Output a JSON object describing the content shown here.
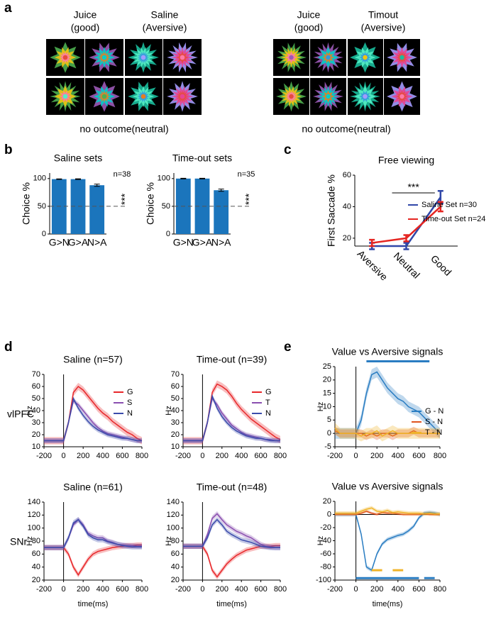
{
  "panel_labels": [
    "a",
    "b",
    "c",
    "d",
    "e"
  ],
  "panel_a": {
    "left": {
      "titles": [
        [
          "Juice",
          "(good)"
        ],
        [
          "Saline",
          "(Aversive)"
        ]
      ],
      "caption": "no outcome(neutral)"
    },
    "right": {
      "titles": [
        [
          "Juice",
          "(good)"
        ],
        [
          "Timout",
          "(Aversive)"
        ]
      ],
      "caption": "no outcome(neutral)"
    }
  },
  "row_labels": [
    "vlPFC",
    "SNr"
  ],
  "chart_data": [
    {
      "type": "bar",
      "title": "Saline sets",
      "categories": [
        "G>N",
        "G>A",
        "N>A"
      ],
      "values": [
        99,
        99,
        88
      ],
      "errors": [
        0.5,
        0.6,
        2
      ],
      "color": "#1b75bc",
      "ylabel": "Choice %",
      "ylim": [
        0,
        110
      ],
      "yticks": [
        0,
        50,
        100
      ],
      "reference_line": 50,
      "n_label": "n=38",
      "significance": "***"
    },
    {
      "type": "bar",
      "title": "Time-out sets",
      "categories": [
        "G>N",
        "G>A",
        "N>A"
      ],
      "values": [
        100,
        100,
        79
      ],
      "errors": [
        0.5,
        0.5,
        2
      ],
      "color": "#1b75bc",
      "ylabel": "Choice %",
      "ylim": [
        0,
        110
      ],
      "yticks": [
        0,
        50,
        100
      ],
      "reference_line": 50,
      "n_label": "n=35",
      "significance": "***"
    },
    {
      "type": "line",
      "title": "Free viewing",
      "categories": [
        "Aversive",
        "Neutral",
        "Good"
      ],
      "ylabel": "First Saccade %",
      "ylim": [
        15,
        60
      ],
      "yticks": [
        20,
        40,
        60
      ],
      "series": [
        {
          "name": "Saline Set n=30",
          "color": "#3047a8",
          "values": [
            15,
            15,
            46
          ],
          "errors": [
            2,
            2,
            4
          ]
        },
        {
          "name": "Time-out Set n=24",
          "color": "#e52521",
          "values": [
            17,
            20,
            40
          ],
          "errors": [
            2,
            2,
            3
          ]
        }
      ],
      "legend": "center right",
      "significance": "***"
    },
    {
      "type": "line",
      "title": "Saline (n=57)",
      "ylabel": "Hz",
      "x": [
        -200,
        -150,
        -100,
        -50,
        0,
        50,
        100,
        150,
        200,
        250,
        300,
        350,
        400,
        450,
        500,
        550,
        600,
        650,
        700,
        750,
        800
      ],
      "xlim": [
        -200,
        800
      ],
      "xticks": [
        -200,
        0,
        200,
        400,
        600,
        800
      ],
      "ylim": [
        10,
        70
      ],
      "yticks": [
        10,
        20,
        30,
        40,
        50,
        60,
        70
      ],
      "vline": 0,
      "legend": "upper right",
      "series": [
        {
          "name": "G",
          "color": "#e8272a",
          "error": 3,
          "values": [
            15,
            15,
            15,
            15,
            15,
            30,
            55,
            60,
            57,
            52,
            47,
            42,
            38,
            35,
            31,
            28,
            25,
            22,
            20,
            17,
            15
          ]
        },
        {
          "name": "S",
          "color": "#8a4fb0",
          "error": 2,
          "values": [
            15,
            15,
            15,
            15,
            15,
            30,
            48,
            45,
            40,
            35,
            30,
            26,
            23,
            21,
            20,
            19,
            18,
            17,
            16,
            15,
            15
          ]
        },
        {
          "name": "N",
          "color": "#3b4bab",
          "error": 2,
          "values": [
            15,
            15,
            15,
            15,
            15,
            30,
            50,
            42,
            36,
            31,
            27,
            24,
            22,
            20,
            19,
            18,
            17,
            17,
            16,
            15,
            15
          ]
        }
      ]
    },
    {
      "type": "line",
      "title": "Time-out (n=39)",
      "ylabel": "Hz",
      "x": [
        -200,
        -150,
        -100,
        -50,
        0,
        50,
        100,
        150,
        200,
        250,
        300,
        350,
        400,
        450,
        500,
        550,
        600,
        650,
        700,
        750,
        800
      ],
      "xlim": [
        -200,
        800
      ],
      "xticks": [
        -200,
        0,
        200,
        400,
        600,
        800
      ],
      "ylim": [
        10,
        70
      ],
      "yticks": [
        10,
        20,
        30,
        40,
        50,
        60,
        70
      ],
      "vline": 0,
      "legend": "upper right",
      "series": [
        {
          "name": "G",
          "color": "#e8272a",
          "error": 3,
          "values": [
            15,
            15,
            15,
            15,
            15,
            30,
            55,
            62,
            60,
            57,
            52,
            46,
            41,
            37,
            33,
            30,
            27,
            24,
            21,
            18,
            16
          ]
        },
        {
          "name": "T",
          "color": "#8a4fb0",
          "error": 2,
          "values": [
            15,
            15,
            15,
            15,
            15,
            30,
            50,
            45,
            38,
            33,
            28,
            25,
            22,
            20,
            19,
            18,
            17,
            16,
            16,
            15,
            15
          ]
        },
        {
          "name": "N",
          "color": "#3b4bab",
          "error": 2,
          "values": [
            15,
            15,
            15,
            15,
            15,
            30,
            52,
            42,
            35,
            30,
            26,
            23,
            21,
            19,
            18,
            17,
            17,
            16,
            15,
            15,
            15
          ]
        }
      ]
    },
    {
      "type": "line",
      "title": "Saline (n=61)",
      "ylabel": "Hz",
      "xlabel": "time(ms)",
      "x": [
        -200,
        -150,
        -100,
        -50,
        0,
        50,
        100,
        150,
        200,
        250,
        300,
        350,
        400,
        450,
        500,
        550,
        600,
        650,
        700,
        750,
        800
      ],
      "xlim": [
        -200,
        800
      ],
      "xticks": [
        -200,
        0,
        200,
        400,
        600,
        800
      ],
      "ylim": [
        20,
        140
      ],
      "yticks": [
        20,
        40,
        60,
        80,
        100,
        120,
        140
      ],
      "vline": 0,
      "series": [
        {
          "color": "#e8272a",
          "error": 4,
          "values": [
            70,
            70,
            70,
            70,
            70,
            60,
            40,
            28,
            40,
            52,
            60,
            64,
            66,
            68,
            70,
            71,
            72,
            73,
            73,
            74,
            74
          ]
        },
        {
          "color": "#8a4fb0",
          "error": 4,
          "values": [
            70,
            70,
            70,
            70,
            70,
            85,
            105,
            113,
            105,
            92,
            88,
            85,
            85,
            80,
            78,
            75,
            74,
            73,
            73,
            72,
            72
          ]
        },
        {
          "color": "#3b4bab",
          "error": 4,
          "values": [
            70,
            70,
            70,
            70,
            70,
            85,
            108,
            113,
            103,
            90,
            85,
            82,
            82,
            79,
            77,
            75,
            73,
            72,
            71,
            71,
            71
          ]
        }
      ]
    },
    {
      "type": "line",
      "title": "Time-out (n=48)",
      "ylabel": "Hz",
      "xlabel": "time(ms)",
      "x": [
        -200,
        -150,
        -100,
        -50,
        0,
        50,
        100,
        150,
        200,
        250,
        300,
        350,
        400,
        450,
        500,
        550,
        600,
        650,
        700,
        750,
        800
      ],
      "xlim": [
        -200,
        800
      ],
      "xticks": [
        -200,
        0,
        200,
        400,
        600,
        800
      ],
      "ylim": [
        20,
        140
      ],
      "yticks": [
        20,
        40,
        60,
        80,
        100,
        120,
        140
      ],
      "vline": 0,
      "series": [
        {
          "color": "#e8272a",
          "error": 4,
          "values": [
            72,
            72,
            72,
            72,
            72,
            60,
            35,
            25,
            35,
            45,
            52,
            58,
            62,
            66,
            68,
            70,
            72,
            72,
            72,
            73,
            73
          ]
        },
        {
          "color": "#8a4fb0",
          "error": 4,
          "values": [
            72,
            72,
            72,
            72,
            72,
            90,
            115,
            122,
            113,
            105,
            100,
            95,
            92,
            88,
            85,
            80,
            75,
            72,
            71,
            70,
            70
          ]
        },
        {
          "color": "#3b4bab",
          "error": 4,
          "values": [
            72,
            72,
            72,
            72,
            72,
            85,
            105,
            113,
            105,
            95,
            90,
            86,
            82,
            80,
            78,
            75,
            72,
            71,
            70,
            70,
            70
          ]
        }
      ]
    },
    {
      "type": "line",
      "title": "Value vs Aversive signals",
      "ylabel": "Hz",
      "x": [
        -200,
        -150,
        -100,
        -50,
        0,
        50,
        100,
        150,
        200,
        250,
        300,
        350,
        400,
        450,
        500,
        550,
        600,
        650,
        700,
        750,
        800
      ],
      "xlim": [
        -200,
        800
      ],
      "xticks": [
        -200,
        0,
        200,
        400,
        600,
        800
      ],
      "ylim": [
        -5,
        25
      ],
      "yticks": [
        -5,
        0,
        5,
        10,
        15,
        20,
        25
      ],
      "vline": 0,
      "hline": 0,
      "legend": "lower right",
      "series": [
        {
          "name": "G - N",
          "color": "#2a7dc2",
          "error": 2,
          "values": [
            0,
            0,
            0,
            0,
            0,
            5,
            15,
            22,
            23,
            20,
            17,
            15,
            13,
            12,
            10,
            9,
            8,
            6,
            4,
            2,
            0
          ]
        },
        {
          "name": "S - N",
          "color": "#e0531f",
          "error": 1.5,
          "values": [
            1,
            0,
            0,
            0,
            0,
            0,
            -1,
            0,
            -1,
            0,
            0,
            -1,
            0,
            0,
            0,
            1,
            0,
            0,
            0,
            0,
            0
          ]
        },
        {
          "name": "T - N",
          "color": "#f0b429",
          "error": 2,
          "values": [
            2,
            0,
            0,
            0,
            0,
            -1,
            0,
            0,
            1,
            -1,
            0,
            1,
            0,
            0,
            0,
            0,
            0,
            0,
            0,
            0,
            0
          ]
        }
      ],
      "sig_bars": [
        {
          "color": "#2a7dc2",
          "from": 100,
          "to": 700,
          "y": 27
        }
      ]
    },
    {
      "type": "line",
      "title": "Value vs Aversive signals",
      "ylabel": "Hz",
      "xlabel": "time(ms)",
      "x": [
        -200,
        -150,
        -100,
        -50,
        0,
        50,
        100,
        150,
        200,
        250,
        300,
        350,
        400,
        450,
        500,
        550,
        600,
        650,
        700,
        750,
        800
      ],
      "xlim": [
        -200,
        800
      ],
      "xticks": [
        -200,
        0,
        200,
        400,
        600,
        800
      ],
      "ylim": [
        -100,
        20
      ],
      "yticks": [
        -100,
        -80,
        -60,
        -40,
        -20,
        0,
        20
      ],
      "vline": 0,
      "hline": 0,
      "series": [
        {
          "color": "#2a7dc2",
          "error": 3,
          "values": [
            0,
            0,
            0,
            0,
            0,
            -30,
            -80,
            -85,
            -60,
            -45,
            -38,
            -35,
            -32,
            -30,
            -25,
            -18,
            -5,
            2,
            3,
            2,
            0
          ]
        },
        {
          "color": "#e0531f",
          "error": 2,
          "values": [
            0,
            0,
            0,
            0,
            0,
            2,
            5,
            2,
            0,
            3,
            2,
            2,
            1,
            0,
            0,
            0,
            0,
            1,
            0,
            0,
            0
          ]
        },
        {
          "color": "#f0b429",
          "error": 3,
          "values": [
            2,
            2,
            2,
            2,
            2,
            5,
            8,
            10,
            5,
            4,
            6,
            3,
            4,
            3,
            2,
            2,
            2,
            1,
            2,
            1,
            1
          ]
        }
      ],
      "sig_bars": [
        {
          "color": "#f0b429",
          "from": 150,
          "to": 250,
          "y": -85
        },
        {
          "color": "#f0b429",
          "from": 350,
          "to": 450,
          "y": -85
        },
        {
          "color": "#2a7dc2",
          "from": 0,
          "to": 600,
          "y": -97
        },
        {
          "color": "#2a7dc2",
          "from": 650,
          "to": 750,
          "y": -97
        }
      ]
    }
  ]
}
